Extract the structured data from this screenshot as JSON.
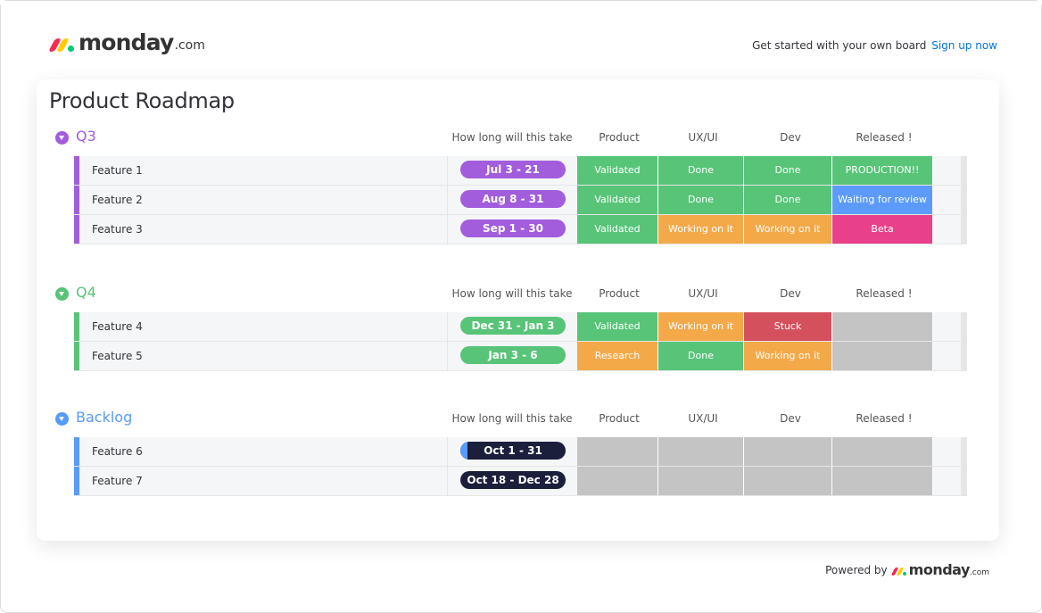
{
  "brand": {
    "name": "monday",
    "suffix": ".com"
  },
  "cta": {
    "text": "Get started with your own board",
    "link": "Sign up now"
  },
  "board": {
    "title": "Product Roadmap"
  },
  "columns": [
    "How long will this take",
    "Product",
    "UX/UI",
    "Dev",
    "Released !"
  ],
  "colors": {
    "q3": "#a25ddc",
    "q4": "#00c875",
    "backlog": "#579bfc",
    "green": "#57c478",
    "orange": "#f4a949",
    "red": "#d5505d",
    "blue": "#5c9bfb",
    "pink": "#e8408a",
    "grey": "#c4c4c4",
    "navy": "#1c1f3b"
  },
  "groups": [
    {
      "name": "Q3",
      "color": "#a25ddc",
      "items": [
        {
          "name": "Feature 1",
          "timeline": "Jul 3 - 21",
          "product": "Validated",
          "uxui": "Done",
          "dev": "Done",
          "released": "PRODUCTION!!"
        },
        {
          "name": "Feature 2",
          "timeline": "Aug 8 - 31",
          "product": "Validated",
          "uxui": "Done",
          "dev": "Done",
          "released": "Waiting for review"
        },
        {
          "name": "Feature 3",
          "timeline": "Sep 1 - 30",
          "product": "Validated",
          "uxui": "Working on it",
          "dev": "Working on it",
          "released": "Beta"
        }
      ]
    },
    {
      "name": "Q4",
      "color": "#57c478",
      "items": [
        {
          "name": "Feature 4",
          "timeline": "Dec 31 - Jan 3",
          "product": "Validated",
          "uxui": "Working on it",
          "dev": "Stuck",
          "released": ""
        },
        {
          "name": "Feature 5",
          "timeline": "Jan 3 - 6",
          "product": "Research",
          "uxui": "Done",
          "dev": "Working on it",
          "released": ""
        }
      ]
    },
    {
      "name": "Backlog",
      "color": "#579bfc",
      "items": [
        {
          "name": "Feature 6",
          "timeline": "Oct 1 - 31",
          "product": "",
          "uxui": "",
          "dev": "",
          "released": ""
        },
        {
          "name": "Feature 7",
          "timeline": "Oct 18 - Dec 28",
          "product": "",
          "uxui": "",
          "dev": "",
          "released": ""
        }
      ]
    }
  ],
  "footer": {
    "text": "Powered by"
  }
}
